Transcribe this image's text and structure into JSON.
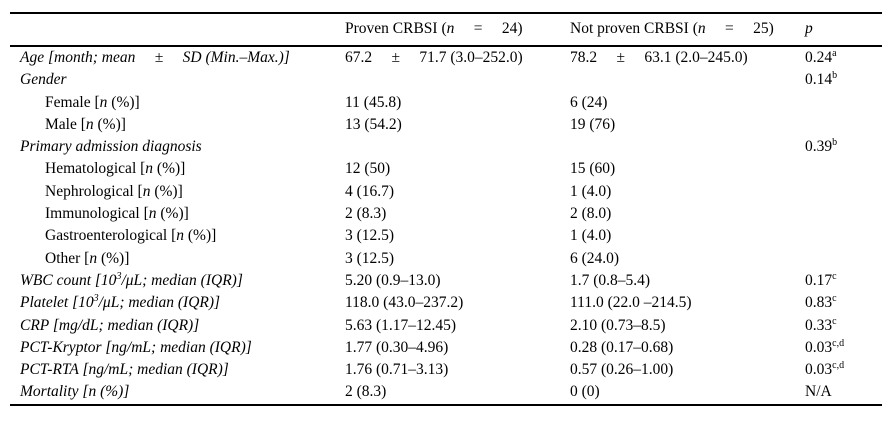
{
  "table": {
    "description": "Comparison of patient characteristics between proven and not proven CRBSI groups",
    "header": {
      "col_label": [],
      "col_proven": [
        {
          "t": "Proven CRBSI (",
          "s": "r"
        },
        {
          "t": "n",
          "s": "i"
        },
        {
          "t": "  =  24)",
          "s": "r"
        }
      ],
      "col_not_proven": [
        {
          "t": "Not proven CRBSI (",
          "s": "r"
        },
        {
          "t": "n",
          "s": "i"
        },
        {
          "t": "  =  25)",
          "s": "r"
        }
      ],
      "col_p": [
        {
          "t": "p",
          "s": "i"
        }
      ]
    },
    "rows": [
      {
        "indent": false,
        "label": [
          {
            "t": "Age [month; mean  ±  SD (Min.–Max.)]",
            "s": "i"
          }
        ],
        "proven": [
          {
            "t": "67.2  ±  71.7 (3.0–252.0)",
            "s": "r"
          }
        ],
        "not_proven": [
          {
            "t": "78.2  ±  63.1 (2.0–245.0)",
            "s": "r"
          }
        ],
        "p": [
          {
            "t": "0.24",
            "s": "r"
          },
          {
            "t": "a",
            "s": "sup"
          }
        ]
      },
      {
        "indent": false,
        "label": [
          {
            "t": "Gender",
            "s": "i"
          }
        ],
        "proven": [],
        "not_proven": [],
        "p": [
          {
            "t": "0.14",
            "s": "r"
          },
          {
            "t": "b",
            "s": "sup"
          }
        ]
      },
      {
        "indent": true,
        "label": [
          {
            "t": "Female [",
            "s": "r"
          },
          {
            "t": "n",
            "s": "i"
          },
          {
            "t": " (%)]",
            "s": "r"
          }
        ],
        "proven": [
          {
            "t": "11 (45.8)",
            "s": "r"
          }
        ],
        "not_proven": [
          {
            "t": "6 (24)",
            "s": "r"
          }
        ],
        "p": []
      },
      {
        "indent": true,
        "label": [
          {
            "t": "Male [",
            "s": "r"
          },
          {
            "t": "n",
            "s": "i"
          },
          {
            "t": " (%)]",
            "s": "r"
          }
        ],
        "proven": [
          {
            "t": "13 (54.2)",
            "s": "r"
          }
        ],
        "not_proven": [
          {
            "t": "19 (76)",
            "s": "r"
          }
        ],
        "p": []
      },
      {
        "indent": false,
        "label": [
          {
            "t": "Primary admission diagnosis",
            "s": "i"
          }
        ],
        "proven": [],
        "not_proven": [],
        "p": [
          {
            "t": "0.39",
            "s": "r"
          },
          {
            "t": "b",
            "s": "sup"
          }
        ]
      },
      {
        "indent": true,
        "label": [
          {
            "t": "Hematological [",
            "s": "r"
          },
          {
            "t": "n",
            "s": "i"
          },
          {
            "t": " (%)]",
            "s": "r"
          }
        ],
        "proven": [
          {
            "t": "12 (50)",
            "s": "r"
          }
        ],
        "not_proven": [
          {
            "t": "15 (60)",
            "s": "r"
          }
        ],
        "p": []
      },
      {
        "indent": true,
        "label": [
          {
            "t": "Nephrological [",
            "s": "r"
          },
          {
            "t": "n",
            "s": "i"
          },
          {
            "t": " (%)]",
            "s": "r"
          }
        ],
        "proven": [
          {
            "t": "4 (16.7)",
            "s": "r"
          }
        ],
        "not_proven": [
          {
            "t": "1 (4.0)",
            "s": "r"
          }
        ],
        "p": []
      },
      {
        "indent": true,
        "label": [
          {
            "t": "Immunological [",
            "s": "r"
          },
          {
            "t": "n",
            "s": "i"
          },
          {
            "t": " (%)]",
            "s": "r"
          }
        ],
        "proven": [
          {
            "t": "2 (8.3)",
            "s": "r"
          }
        ],
        "not_proven": [
          {
            "t": "2 (8.0)",
            "s": "r"
          }
        ],
        "p": []
      },
      {
        "indent": true,
        "label": [
          {
            "t": "Gastroenterological [",
            "s": "r"
          },
          {
            "t": "n",
            "s": "i"
          },
          {
            "t": " (%)]",
            "s": "r"
          }
        ],
        "proven": [
          {
            "t": "3 (12.5)",
            "s": "r"
          }
        ],
        "not_proven": [
          {
            "t": "1 (4.0)",
            "s": "r"
          }
        ],
        "p": []
      },
      {
        "indent": true,
        "label": [
          {
            "t": "Other [",
            "s": "r"
          },
          {
            "t": "n",
            "s": "i"
          },
          {
            "t": " (%)]",
            "s": "r"
          }
        ],
        "proven": [
          {
            "t": "3 (12.5)",
            "s": "r"
          }
        ],
        "not_proven": [
          {
            "t": "6 (24.0)",
            "s": "r"
          }
        ],
        "p": []
      },
      {
        "indent": false,
        "label": [
          {
            "t": "WBC count [10",
            "s": "i"
          },
          {
            "t": "3",
            "s": "isup"
          },
          {
            "t": "/μL; median (IQR)]",
            "s": "i"
          }
        ],
        "proven": [
          {
            "t": "5.20 (0.9–13.0)",
            "s": "r"
          }
        ],
        "not_proven": [
          {
            "t": "1.7 (0.8–5.4)",
            "s": "r"
          }
        ],
        "p": [
          {
            "t": "0.17",
            "s": "r"
          },
          {
            "t": "c",
            "s": "sup"
          }
        ]
      },
      {
        "indent": false,
        "label": [
          {
            "t": "Platelet [10",
            "s": "i"
          },
          {
            "t": "3",
            "s": "isup"
          },
          {
            "t": "/μL; median (IQR)]",
            "s": "i"
          }
        ],
        "proven": [
          {
            "t": "118.0 (43.0–237.2)",
            "s": "r"
          }
        ],
        "not_proven": [
          {
            "t": "111.0 (22.0 –214.5)",
            "s": "r"
          }
        ],
        "p": [
          {
            "t": "0.83",
            "s": "r"
          },
          {
            "t": "c",
            "s": "sup"
          }
        ]
      },
      {
        "indent": false,
        "label": [
          {
            "t": "CRP [mg/dL; median (IQR)]",
            "s": "i"
          }
        ],
        "proven": [
          {
            "t": "5.63 (1.17–12.45)",
            "s": "r"
          }
        ],
        "not_proven": [
          {
            "t": "2.10 (0.73–8.5)",
            "s": "r"
          }
        ],
        "p": [
          {
            "t": "0.33",
            "s": "r"
          },
          {
            "t": "c",
            "s": "sup"
          }
        ]
      },
      {
        "indent": false,
        "label": [
          {
            "t": "PCT-Kryptor [ng/mL; median (IQR)]",
            "s": "i"
          }
        ],
        "proven": [
          {
            "t": "1.77 (0.30–4.96)",
            "s": "r"
          }
        ],
        "not_proven": [
          {
            "t": "0.28 (0.17–0.68)",
            "s": "r"
          }
        ],
        "p": [
          {
            "t": "0.03",
            "s": "r"
          },
          {
            "t": "c,d",
            "s": "sup"
          }
        ]
      },
      {
        "indent": false,
        "label": [
          {
            "t": "PCT-RTA [ng/mL; median (IQR)]",
            "s": "i"
          }
        ],
        "proven": [
          {
            "t": "1.76 (0.71–3.13)",
            "s": "r"
          }
        ],
        "not_proven": [
          {
            "t": "0.57 (0.26–1.00)",
            "s": "r"
          }
        ],
        "p": [
          {
            "t": "0.03",
            "s": "r"
          },
          {
            "t": "c,d",
            "s": "sup"
          }
        ]
      },
      {
        "indent": false,
        "label": [
          {
            "t": "Mortality [",
            "s": "i"
          },
          {
            "t": "n",
            "s": "i"
          },
          {
            "t": " (%)]",
            "s": "i"
          }
        ],
        "proven": [
          {
            "t": "2 (8.3)",
            "s": "r"
          }
        ],
        "not_proven": [
          {
            "t": "0 (0)",
            "s": "r"
          }
        ],
        "p": [
          {
            "t": "N/A",
            "s": "r"
          }
        ]
      }
    ],
    "colors": {
      "text": "#000000",
      "background": "#ffffff",
      "rule": "#000000"
    }
  }
}
